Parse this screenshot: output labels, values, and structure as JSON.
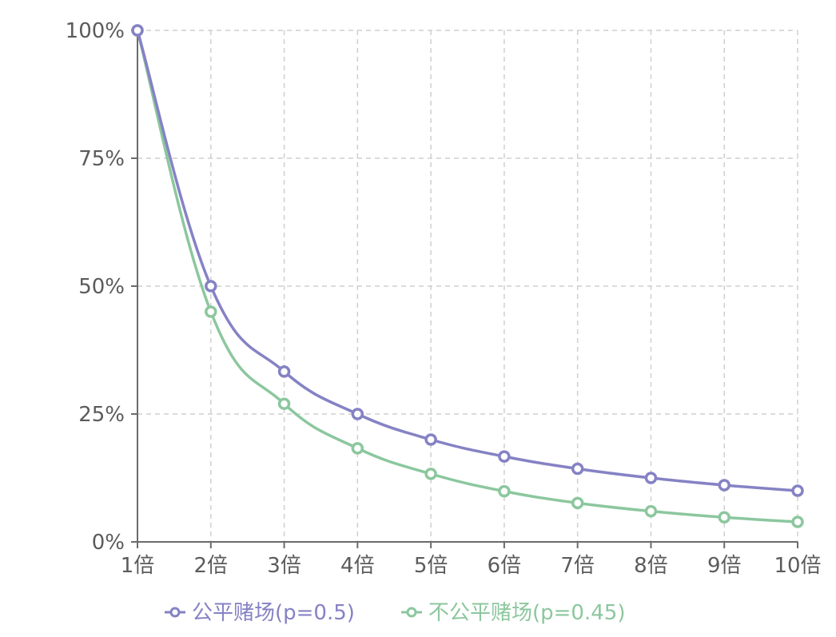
{
  "chart_data": {
    "type": "line",
    "categories": [
      "1倍",
      "2倍",
      "3倍",
      "4倍",
      "5倍",
      "6倍",
      "7倍",
      "8倍",
      "9倍",
      "10倍"
    ],
    "y_ticks": [
      "0%",
      "25%",
      "50%",
      "75%",
      "100%"
    ],
    "ylim": [
      0,
      100
    ],
    "grid": true,
    "legend_position": "bottom",
    "series": [
      {
        "name": "公平赌场(p=0.5)",
        "color": "#8582c4",
        "values": [
          100,
          50,
          33.3,
          25,
          20,
          16.7,
          14.3,
          12.5,
          11.1,
          10
        ]
      },
      {
        "name": "不公平赌场(p=0.45)",
        "color": "#8cc79e",
        "values": [
          100,
          45,
          27,
          18.3,
          13.3,
          9.9,
          7.6,
          6.0,
          4.8,
          3.9
        ]
      }
    ]
  }
}
